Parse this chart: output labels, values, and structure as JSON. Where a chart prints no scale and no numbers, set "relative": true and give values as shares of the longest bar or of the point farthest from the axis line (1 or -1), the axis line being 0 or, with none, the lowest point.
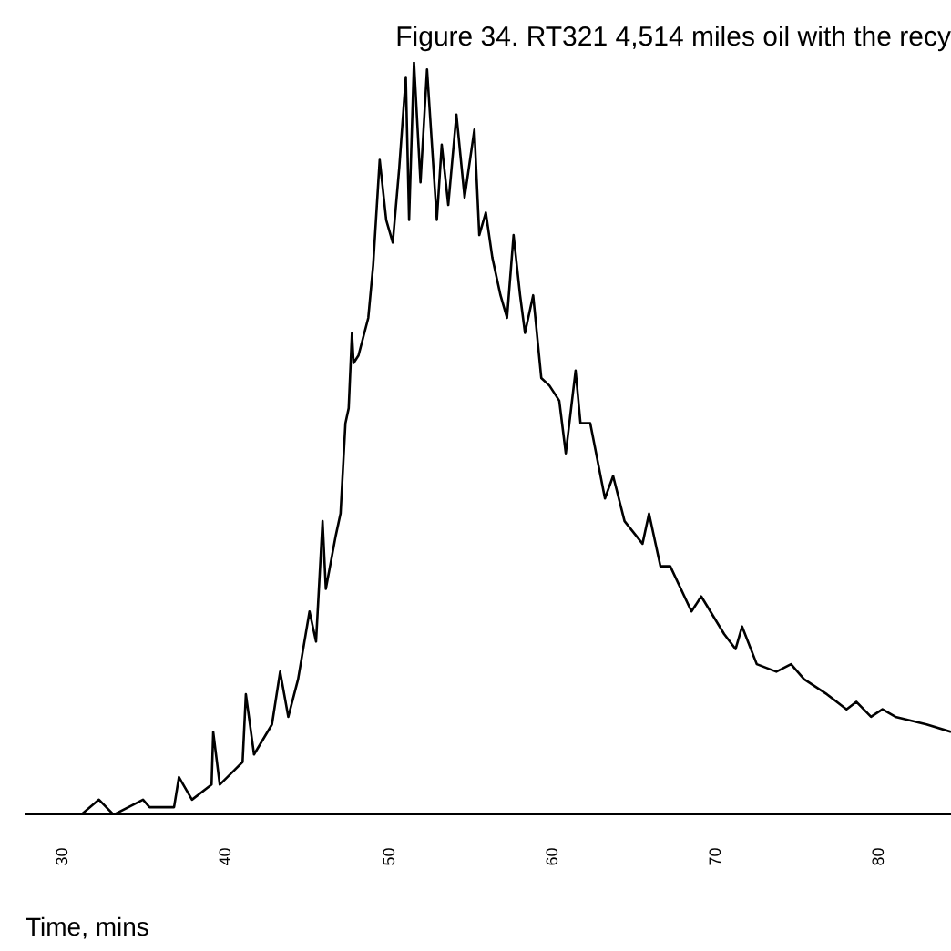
{
  "chart_data": {
    "type": "line",
    "title": "Figure 34. RT321 4,514 miles oil with the recy",
    "xlabel": "Time, mins",
    "relative": true,
    "xlim": [
      27.7,
      84.4
    ],
    "xticks": [
      30,
      40,
      50,
      60,
      70,
      80
    ],
    "grid": false,
    "legend": false,
    "marker": "none",
    "line_style": "solid",
    "series": [
      {
        "color": "#000000",
        "x": [
          27.7,
          31.1,
          32.2,
          33.1,
          34.9,
          35.3,
          36.8,
          37.1,
          37.9,
          39.1,
          39.2,
          39.6,
          41.0,
          41.2,
          41.7,
          42.8,
          43.3,
          43.8,
          44.4,
          45.1,
          45.5,
          45.9,
          46.1,
          46.7,
          47.0,
          47.3,
          47.5,
          47.7,
          47.8,
          48.1,
          48.7,
          49.0,
          49.4,
          49.8,
          50.2,
          50.6,
          51.0,
          51.2,
          51.5,
          51.9,
          52.3,
          52.9,
          53.2,
          53.6,
          54.1,
          54.6,
          55.2,
          55.5,
          55.9,
          56.3,
          56.8,
          57.2,
          57.6,
          58.0,
          58.3,
          58.8,
          59.3,
          59.8,
          60.4,
          60.8,
          61.4,
          61.7,
          62.3,
          63.2,
          63.7,
          64.4,
          65.5,
          65.9,
          66.6,
          67.2,
          68.5,
          69.1,
          70.5,
          71.2,
          71.6,
          72.5,
          73.7,
          74.6,
          75.4,
          76.8,
          78.0,
          78.6,
          79.5,
          80.2,
          81.0,
          82.9,
          84.4
        ],
        "values": [
          0,
          0,
          0.02,
          0,
          0.02,
          0.01,
          0.01,
          0.05,
          0.02,
          0.04,
          0.11,
          0.04,
          0.07,
          0.16,
          0.08,
          0.12,
          0.19,
          0.13,
          0.18,
          0.27,
          0.23,
          0.39,
          0.3,
          0.37,
          0.4,
          0.52,
          0.54,
          0.64,
          0.6,
          0.61,
          0.66,
          0.73,
          0.87,
          0.79,
          0.76,
          0.86,
          0.98,
          0.79,
          1,
          0.84,
          0.99,
          0.79,
          0.89,
          0.81,
          0.93,
          0.82,
          0.91,
          0.77,
          0.8,
          0.74,
          0.69,
          0.66,
          0.77,
          0.69,
          0.64,
          0.69,
          0.58,
          0.57,
          0.55,
          0.48,
          0.59,
          0.52,
          0.52,
          0.42,
          0.45,
          0.39,
          0.36,
          0.4,
          0.33,
          0.33,
          0.27,
          0.29,
          0.24,
          0.22,
          0.25,
          0.2,
          0.19,
          0.2,
          0.18,
          0.16,
          0.14,
          0.15,
          0.13,
          0.14,
          0.13,
          0.12,
          0.11
        ]
      }
    ]
  }
}
